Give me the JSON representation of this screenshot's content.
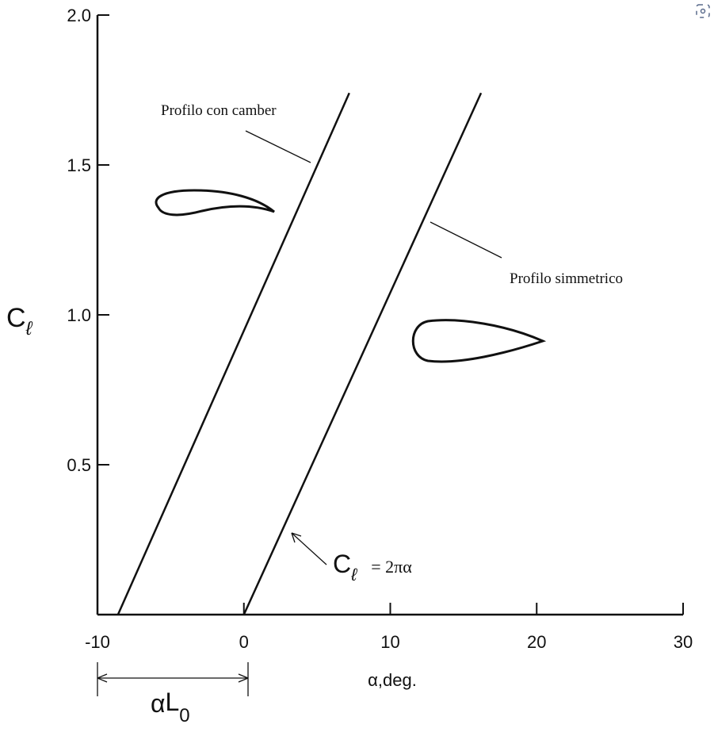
{
  "chart_data": {
    "type": "line",
    "ylabel": {
      "symbol": "C",
      "subscript": "ℓ"
    },
    "xlabel": "α,deg.",
    "xlim": [
      -10,
      30
    ],
    "xticks": [
      -10,
      0,
      10,
      20,
      30
    ],
    "ylim": [
      0,
      2
    ],
    "yticks": [
      0.5,
      {
        "value": 1,
        "label": "1.0"
      },
      1.5,
      {
        "value": 2,
        "label": "2.0"
      }
    ],
    "series": [
      {
        "name": "Profilo con camber",
        "color": "#111111",
        "x": [
          -8.6,
          7.2
        ],
        "values": [
          0,
          1.74
        ]
      },
      {
        "name": "Profilo simmetrico",
        "color": "#111111",
        "x": [
          0,
          16.2
        ],
        "values": [
          0,
          1.74
        ]
      }
    ],
    "formula": {
      "symbol": "C",
      "subscript": "ℓ",
      "expression": "= 2πα"
    },
    "zero_lift_angle": {
      "symbol": "α",
      "subscript": "L",
      "sub_subscript": "0"
    }
  }
}
